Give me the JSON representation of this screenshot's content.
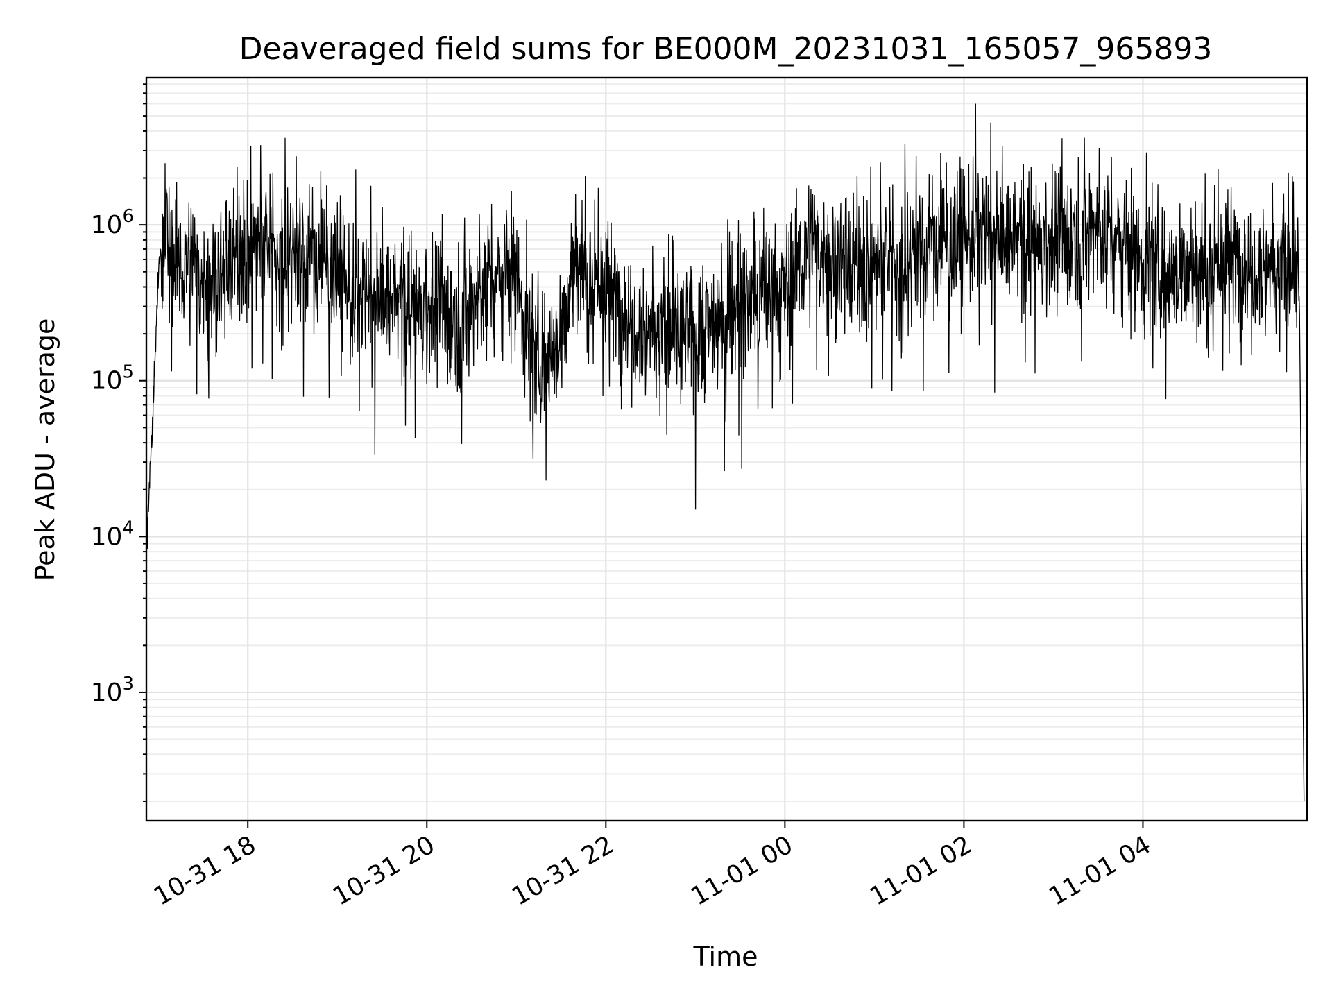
{
  "chart_data": {
    "type": "line",
    "title": "Deaveraged field sums for BE000M_20231031_165057_965893",
    "xlabel": "Time",
    "ylabel": "Peak ADU - average",
    "y_scale": "log",
    "ylim": [
      150,
      8800000
    ],
    "xlim": [
      "2023-10-31 16:52",
      "2023-11-01 05:50"
    ],
    "grid": "major and minor",
    "color": "#000000",
    "x_ticks": [
      {
        "value": "2023-10-31 18:00",
        "label": "10-31 18"
      },
      {
        "value": "2023-10-31 20:00",
        "label": "10-31 20"
      },
      {
        "value": "2023-10-31 22:00",
        "label": "10-31 22"
      },
      {
        "value": "2023-11-01 00:00",
        "label": "11-01 00"
      },
      {
        "value": "2023-11-01 02:00",
        "label": "11-01 02"
      },
      {
        "value": "2023-11-01 04:00",
        "label": "11-01 04"
      }
    ],
    "y_ticks": [
      {
        "value": 1000,
        "base": "10",
        "exp": "3"
      },
      {
        "value": 10000,
        "base": "10",
        "exp": "4"
      },
      {
        "value": 100000,
        "base": "10",
        "exp": "5"
      },
      {
        "value": 1000000,
        "base": "10",
        "exp": "6"
      }
    ],
    "series": [
      {
        "x": [
          "2023-10-31 16:52",
          "2023-10-31 16:55",
          "2023-10-31 16:58",
          "2023-10-31 17:00",
          "2023-10-31 17:05",
          "2023-10-31 17:10",
          "2023-10-31 17:20",
          "2023-10-31 17:30",
          "2023-10-31 17:45",
          "2023-10-31 18:00",
          "2023-10-31 18:30",
          "2023-10-31 19:00",
          "2023-10-31 19:10",
          "2023-10-31 19:30",
          "2023-10-31 20:00",
          "2023-10-31 20:20",
          "2023-10-31 20:40",
          "2023-10-31 21:00",
          "2023-10-31 21:10",
          "2023-10-31 21:30",
          "2023-10-31 21:40",
          "2023-10-31 22:00",
          "2023-10-31 22:20",
          "2023-10-31 22:40",
          "2023-10-31 23:00",
          "2023-10-31 23:30",
          "2023-11-01 00:00",
          "2023-11-01 00:15",
          "2023-11-01 00:30",
          "2023-11-01 01:00",
          "2023-11-01 01:30",
          "2023-11-01 02:00",
          "2023-11-01 02:30",
          "2023-11-01 03:00",
          "2023-11-01 03:30",
          "2023-11-01 04:00",
          "2023-11-01 04:30",
          "2023-11-01 05:00",
          "2023-11-01 05:30",
          "2023-11-01 05:45",
          "2023-11-01 05:48"
        ],
        "y": [
          9000,
          30000,
          150000,
          500000,
          900000,
          600000,
          550000,
          400000,
          550000,
          750000,
          700000,
          550000,
          330000,
          330000,
          300000,
          250000,
          420000,
          500000,
          150000,
          180000,
          600000,
          380000,
          250000,
          200000,
          200000,
          300000,
          400000,
          700000,
          600000,
          550000,
          700000,
          900000,
          800000,
          800000,
          1000000,
          600000,
          500000,
          600000,
          550000,
          450000,
          200
        ]
      }
    ]
  }
}
